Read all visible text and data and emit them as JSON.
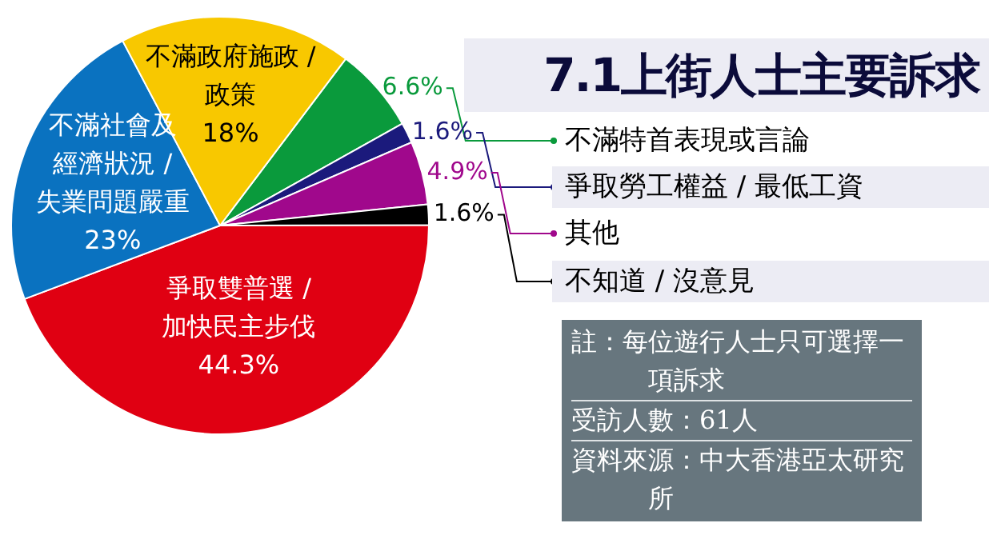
{
  "chart_data": {
    "type": "pie",
    "title": "7.1上街人士主要訴求",
    "categories": [
      "不滿特首表現或言論",
      "爭取勞工權益 / 最低工資",
      "其他",
      "不知道 / 沒意見",
      "爭取雙普選 / 加快民主步伐",
      "不滿社會及經濟狀況 / 失業問題嚴重",
      "不滿政府施政 / 政策"
    ],
    "values": [
      6.6,
      1.6,
      4.9,
      1.6,
      44.3,
      23,
      18
    ],
    "colors": [
      "#0a9a3c",
      "#1b1a7c",
      "#a0088c",
      "#000000",
      "#e00012",
      "#0a72c0",
      "#f8c800"
    ],
    "value_labels": [
      "6.6%",
      "1.6%",
      "4.9%",
      "1.6%",
      "44.3%",
      "23%",
      "18%"
    ],
    "legend": "right",
    "annotations": [
      "註：每位遊行人士只可選擇一項訴求",
      "受訪人數：61人",
      "資料來源：中大香港亞太研究所"
    ]
  }
}
